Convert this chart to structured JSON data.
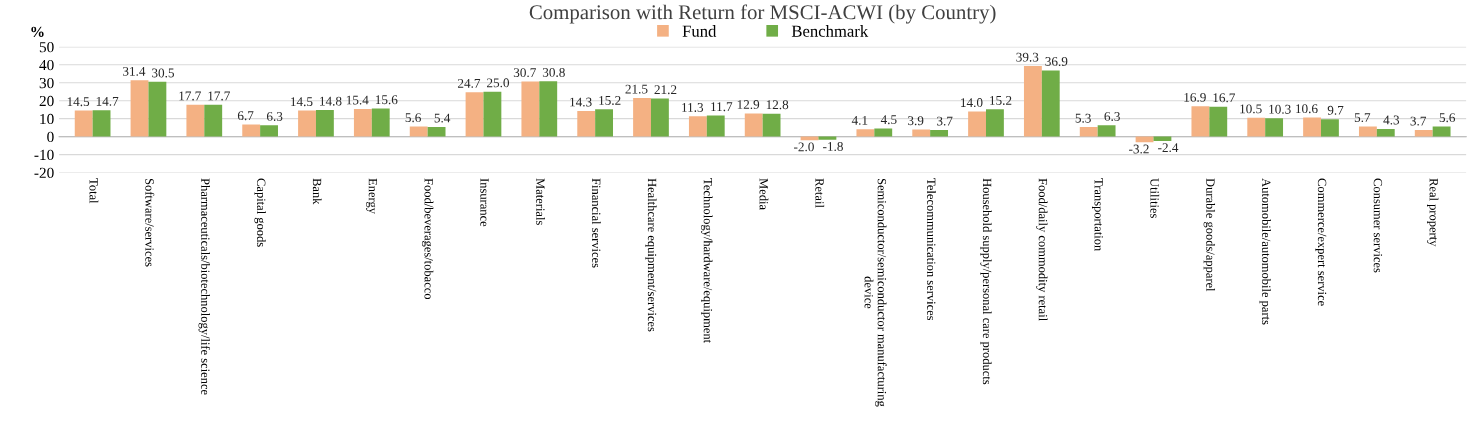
{
  "chart_data": {
    "type": "bar",
    "title": "Comparison with Return for MSCI-ACWI (by Country)",
    "ylabel": "%",
    "categories": [
      "Total",
      "Software/services",
      "Pharmaceuticals/biotechnology/life science",
      "Capital goods",
      "Bank",
      "Energy",
      "Food/beverages/tobacco",
      "Insurance",
      "Materials",
      "Financial services",
      "Healthcare equipment/services",
      "Technology/hardware/equipment",
      "Media",
      "Retail",
      "Semiconductor/semiconductor manufacturing\ndevice",
      "Telecommunication services",
      "Household supply/personal care products",
      "Food/daily commodity retail",
      "Transportation",
      "Utilities",
      "Durable goods/apparel",
      "Automobile/automobile parts",
      "Commerce/expert service",
      "Consumer services",
      "Real property"
    ],
    "series": [
      {
        "name": "Fund",
        "color": "#f4b183",
        "values": [
          14.5,
          31.4,
          17.7,
          6.7,
          14.5,
          15.4,
          5.6,
          24.7,
          30.7,
          14.3,
          21.5,
          11.3,
          12.9,
          -2.0,
          4.1,
          3.9,
          14.0,
          39.3,
          5.3,
          -3.2,
          16.9,
          10.5,
          10.6,
          5.7,
          3.7
        ],
        "value_labels": [
          "14.5",
          "31.4",
          "17.7",
          "6.7",
          "14.5",
          "15.4",
          "5.6",
          "24.7",
          "30.7",
          "14.3",
          "21.5",
          "11.3",
          "12.9",
          "-2.0",
          "4.1",
          "3.9",
          "14.0",
          "39.3",
          "5.3",
          "-3.2",
          "16.9",
          "10.5",
          "10.6",
          "5.7",
          "3.7"
        ]
      },
      {
        "name": "Benchmark",
        "color": "#70ad47",
        "values": [
          14.7,
          30.5,
          17.7,
          6.3,
          14.8,
          15.6,
          5.4,
          25.0,
          30.8,
          15.2,
          21.2,
          11.7,
          12.8,
          -1.8,
          4.5,
          3.7,
          15.2,
          36.9,
          6.3,
          -2.4,
          16.7,
          10.3,
          9.7,
          4.3,
          5.6
        ],
        "value_labels": [
          "14.7",
          "30.5",
          "17.7",
          "6.3",
          "14.8",
          "15.6",
          "5.4",
          "25.0",
          "30.8",
          "15.2",
          "21.2",
          "11.7",
          "12.8",
          "-1.8",
          "4.5",
          "3.7",
          "15.2",
          "36.9",
          "6.3",
          "-2.4",
          "16.7",
          "10.3",
          "9.7",
          "4.3",
          "5.6"
        ]
      }
    ],
    "ylim": [
      -20,
      50
    ],
    "yticks": [
      -20,
      -10,
      0,
      10,
      20,
      30,
      40,
      50
    ],
    "grid": "y",
    "legend": "top"
  }
}
